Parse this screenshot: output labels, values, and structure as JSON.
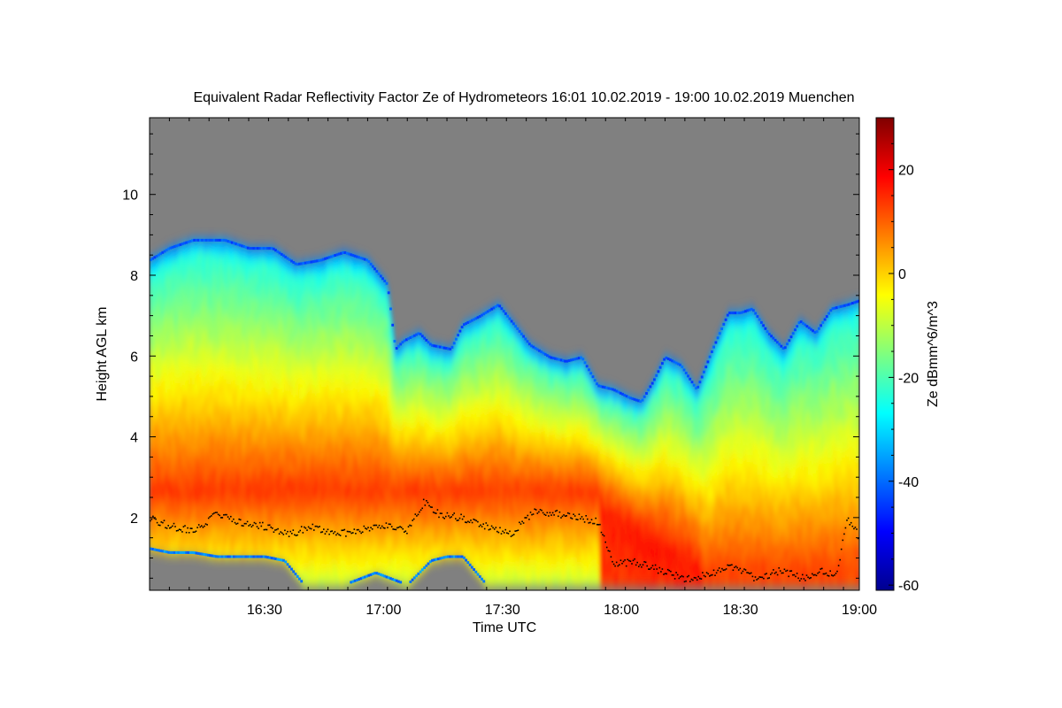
{
  "chart_data": {
    "type": "heatmap",
    "title": "Equivalent Radar Reflectivity Factor Ze of Hydrometeors   16:01 10.02.2019 - 19:00 10.02.2019 Muenchen",
    "xlabel": "Time UTC",
    "ylabel": "Height AGL km",
    "x_start_min": 961,
    "x_end_min": 1140,
    "x_ticks": [
      {
        "label": "16:30",
        "value": 990
      },
      {
        "label": "17:00",
        "value": 1020
      },
      {
        "label": "17:30",
        "value": 1050
      },
      {
        "label": "18:00",
        "value": 1080
      },
      {
        "label": "18:30",
        "value": 1110
      },
      {
        "label": "19:00",
        "value": 1140
      }
    ],
    "ylim": [
      0.2,
      11.9
    ],
    "y_ticks": [
      2,
      4,
      6,
      8,
      10
    ],
    "colorbar": {
      "label": "Ze dBmm^6/m^3",
      "range": [
        -61,
        30
      ],
      "ticks": [
        -60,
        -40,
        -20,
        0,
        20
      ],
      "colors": [
        "#00008f",
        "#0000ff",
        "#007fff",
        "#00ffff",
        "#7fff7f",
        "#ffff00",
        "#ff7f00",
        "#ff0000",
        "#7f0000"
      ]
    },
    "background_color": "#808080",
    "echo_top_km": [
      {
        "t": 961,
        "h": 8.4
      },
      {
        "t": 966,
        "h": 8.7
      },
      {
        "t": 972,
        "h": 8.9
      },
      {
        "t": 980,
        "h": 8.9
      },
      {
        "t": 986,
        "h": 8.7
      },
      {
        "t": 992,
        "h": 8.7
      },
      {
        "t": 998,
        "h": 8.3
      },
      {
        "t": 1004,
        "h": 8.4
      },
      {
        "t": 1010,
        "h": 8.6
      },
      {
        "t": 1016,
        "h": 8.4
      },
      {
        "t": 1021,
        "h": 7.8
      },
      {
        "t": 1023,
        "h": 6.2
      },
      {
        "t": 1025,
        "h": 6.4
      },
      {
        "t": 1029,
        "h": 6.6
      },
      {
        "t": 1032,
        "h": 6.3
      },
      {
        "t": 1037,
        "h": 6.2
      },
      {
        "t": 1040,
        "h": 6.8
      },
      {
        "t": 1044,
        "h": 7.0
      },
      {
        "t": 1049,
        "h": 7.3
      },
      {
        "t": 1053,
        "h": 6.8
      },
      {
        "t": 1057,
        "h": 6.3
      },
      {
        "t": 1062,
        "h": 6.0
      },
      {
        "t": 1066,
        "h": 5.9
      },
      {
        "t": 1070,
        "h": 6.0
      },
      {
        "t": 1074,
        "h": 5.3
      },
      {
        "t": 1078,
        "h": 5.2
      },
      {
        "t": 1082,
        "h": 5.0
      },
      {
        "t": 1085,
        "h": 4.9
      },
      {
        "t": 1088,
        "h": 5.4
      },
      {
        "t": 1091,
        "h": 6.0
      },
      {
        "t": 1095,
        "h": 5.8
      },
      {
        "t": 1099,
        "h": 5.2
      },
      {
        "t": 1103,
        "h": 6.2
      },
      {
        "t": 1107,
        "h": 7.1
      },
      {
        "t": 1110,
        "h": 7.1
      },
      {
        "t": 1113,
        "h": 7.2
      },
      {
        "t": 1117,
        "h": 6.6
      },
      {
        "t": 1121,
        "h": 6.2
      },
      {
        "t": 1125,
        "h": 6.9
      },
      {
        "t": 1129,
        "h": 6.6
      },
      {
        "t": 1133,
        "h": 7.2
      },
      {
        "t": 1137,
        "h": 7.3
      },
      {
        "t": 1140,
        "h": 7.4
      }
    ],
    "echo_base_km": [
      {
        "t": 961,
        "h": 1.2
      },
      {
        "t": 966,
        "h": 1.1
      },
      {
        "t": 972,
        "h": 1.1
      },
      {
        "t": 978,
        "h": 1.0
      },
      {
        "t": 985,
        "h": 1.0
      },
      {
        "t": 990,
        "h": 1.0
      },
      {
        "t": 995,
        "h": 0.9
      },
      {
        "t": 1000,
        "h": 0.3
      },
      {
        "t": 1010,
        "h": 0.3
      },
      {
        "t": 1018,
        "h": 0.6
      },
      {
        "t": 1026,
        "h": 0.3
      },
      {
        "t": 1032,
        "h": 0.9
      },
      {
        "t": 1036,
        "h": 1.0
      },
      {
        "t": 1040,
        "h": 1.0
      },
      {
        "t": 1046,
        "h": 0.3
      },
      {
        "t": 1140,
        "h": 0.3
      }
    ],
    "cloud_base_km": [
      {
        "t": 961,
        "h": 2.0
      },
      {
        "t": 966,
        "h": 1.8
      },
      {
        "t": 972,
        "h": 1.7
      },
      {
        "t": 978,
        "h": 2.1
      },
      {
        "t": 984,
        "h": 1.9
      },
      {
        "t": 990,
        "h": 1.8
      },
      {
        "t": 996,
        "h": 1.6
      },
      {
        "t": 1002,
        "h": 1.8
      },
      {
        "t": 1008,
        "h": 1.6
      },
      {
        "t": 1014,
        "h": 1.7
      },
      {
        "t": 1020,
        "h": 1.8
      },
      {
        "t": 1026,
        "h": 1.7
      },
      {
        "t": 1030,
        "h": 2.4
      },
      {
        "t": 1034,
        "h": 2.1
      },
      {
        "t": 1040,
        "h": 2.0
      },
      {
        "t": 1046,
        "h": 1.8
      },
      {
        "t": 1052,
        "h": 1.6
      },
      {
        "t": 1058,
        "h": 2.2
      },
      {
        "t": 1064,
        "h": 2.1
      },
      {
        "t": 1070,
        "h": 2.0
      },
      {
        "t": 1074,
        "h": 1.9
      },
      {
        "t": 1078,
        "h": 0.9
      },
      {
        "t": 1084,
        "h": 0.9
      },
      {
        "t": 1090,
        "h": 0.7
      },
      {
        "t": 1096,
        "h": 0.5
      },
      {
        "t": 1102,
        "h": 0.6
      },
      {
        "t": 1108,
        "h": 0.8
      },
      {
        "t": 1114,
        "h": 0.5
      },
      {
        "t": 1120,
        "h": 0.7
      },
      {
        "t": 1126,
        "h": 0.5
      },
      {
        "t": 1130,
        "h": 0.7
      },
      {
        "t": 1134,
        "h": 0.6
      },
      {
        "t": 1137,
        "h": 2.0
      },
      {
        "t": 1140,
        "h": 1.5
      }
    ]
  }
}
